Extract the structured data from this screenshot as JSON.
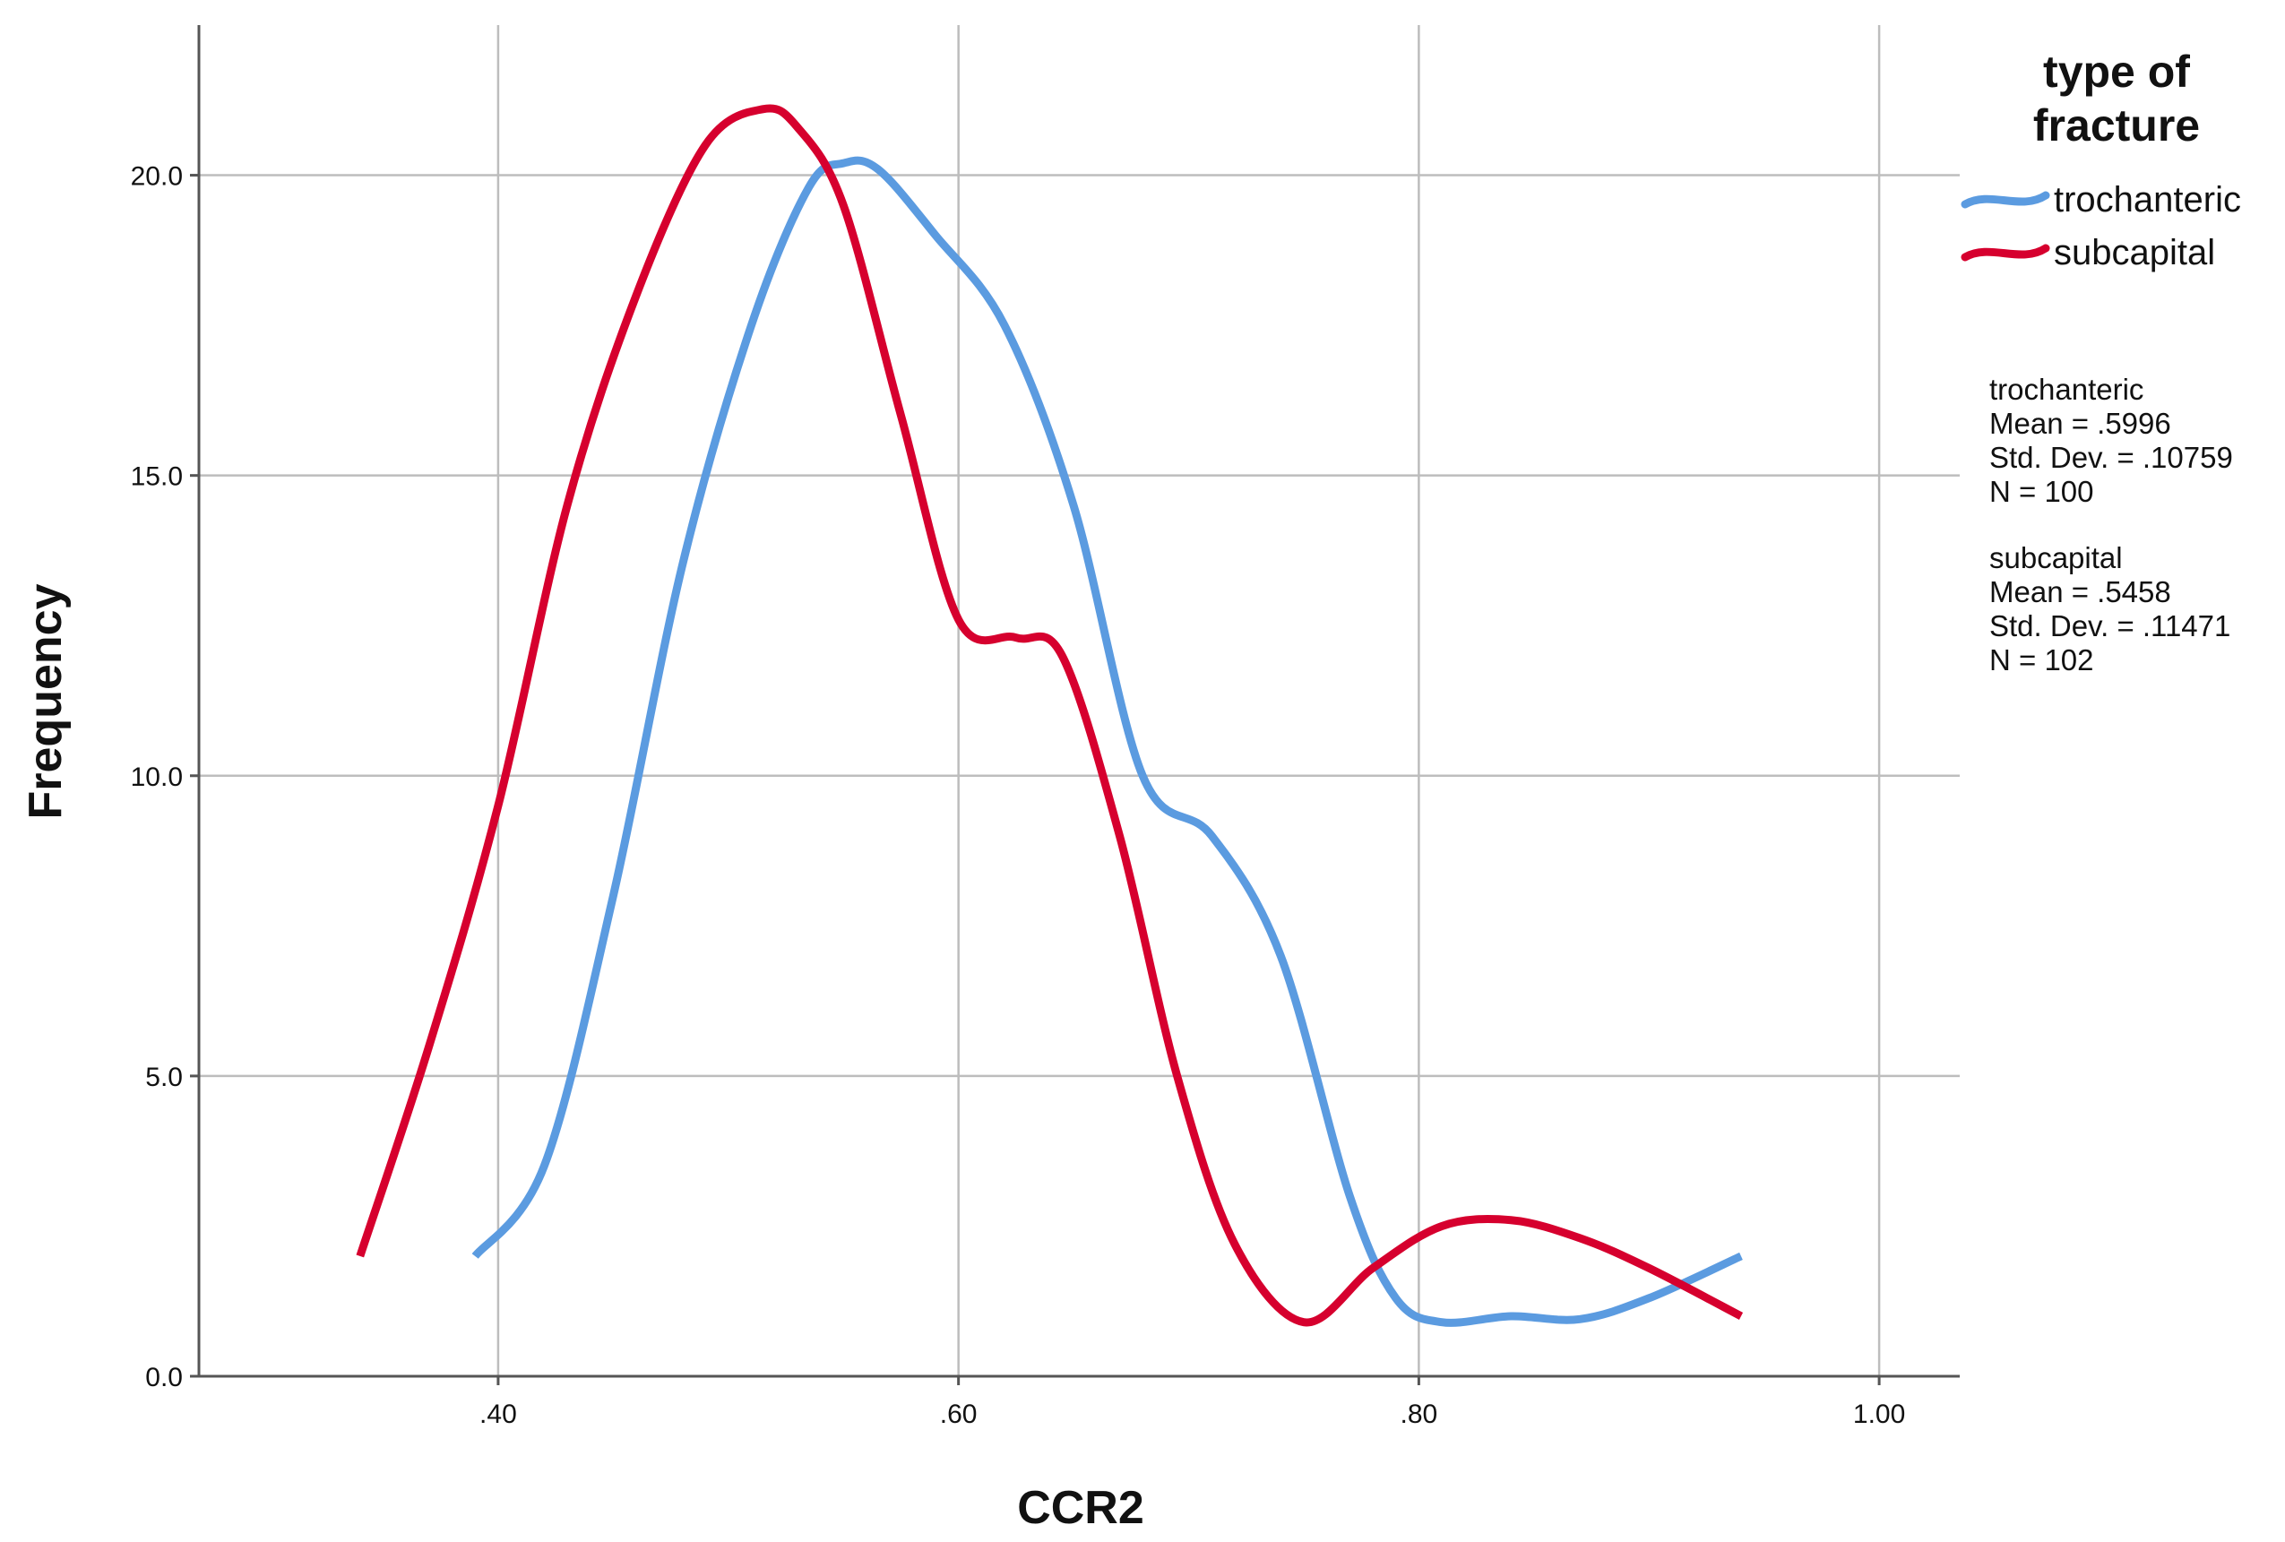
{
  "chart_data": {
    "type": "line",
    "xlabel": "CCR2",
    "ylabel": "Frequency",
    "xlim": [
      0.27,
      1.035
    ],
    "ylim": [
      0,
      22.5
    ],
    "x_ticks": [
      0.4,
      0.6,
      0.8,
      1.0
    ],
    "x_tick_labels": [
      ".40",
      ".60",
      ".80",
      "1.00"
    ],
    "y_ticks": [
      0,
      5,
      10,
      15,
      20
    ],
    "y_tick_labels": [
      "0.0",
      "5.0",
      "10.0",
      "15.0",
      "20.0"
    ],
    "grid": true,
    "legend": {
      "title_lines": [
        "type of",
        "fracture"
      ],
      "placement": "top-right"
    },
    "series": [
      {
        "name": "trochanteric",
        "color": "#5B9BE0",
        "x": [
          0.39,
          0.42,
          0.45,
          0.48,
          0.51,
          0.535,
          0.55,
          0.565,
          0.59,
          0.62,
          0.65,
          0.68,
          0.71,
          0.74,
          0.77,
          0.79,
          0.81,
          0.84,
          0.87,
          0.9,
          0.94
        ],
        "y": [
          2.0,
          3.5,
          8.0,
          13.5,
          17.5,
          19.8,
          20.2,
          20.1,
          19.0,
          17.5,
          14.5,
          10.0,
          9.0,
          7.0,
          3.0,
          1.3,
          0.9,
          1.0,
          0.95,
          1.3,
          2.0
        ],
        "stats": {
          "label": "trochanteric",
          "mean": "Mean = .5996",
          "sd": "Std. Dev. = .10759",
          "n": "N = 100"
        }
      },
      {
        "name": "subcapital",
        "color": "#D6002E",
        "x": [
          0.34,
          0.37,
          0.4,
          0.43,
          0.46,
          0.49,
          0.515,
          0.53,
          0.55,
          0.575,
          0.6,
          0.625,
          0.645,
          0.67,
          0.695,
          0.72,
          0.75,
          0.78,
          0.81,
          0.84,
          0.87,
          0.9,
          0.94
        ],
        "y": [
          2.0,
          5.5,
          9.5,
          14.5,
          18.0,
          20.5,
          21.1,
          20.8,
          19.5,
          16.0,
          12.6,
          12.3,
          12.0,
          9.0,
          5.0,
          2.2,
          0.9,
          1.8,
          2.5,
          2.6,
          2.3,
          1.8,
          1.0
        ],
        "stats": {
          "label": "subcapital",
          "mean": "Mean = .5458",
          "sd": "Std. Dev. = .11471",
          "n": "N = 102"
        }
      }
    ]
  }
}
